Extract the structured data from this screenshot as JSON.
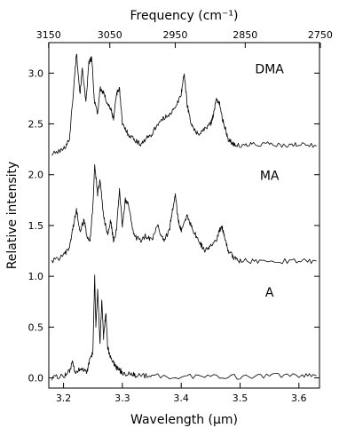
{
  "chart_data": {
    "type": "line",
    "xlabel": "Wavelength (μm)",
    "x2label": "Frequency (cm⁻¹)",
    "ylabel": "Relative intensity",
    "xlim": [
      3.175,
      3.635
    ],
    "ylim": [
      -0.1,
      3.3
    ],
    "x_ticks": [
      3.2,
      3.3,
      3.4,
      3.5,
      3.6
    ],
    "y_ticks": [
      0.0,
      0.5,
      1.0,
      1.5,
      2.0,
      2.5,
      3.0
    ],
    "x2_ticks": [
      3150,
      3050,
      2950,
      2850,
      2750
    ],
    "x_tick_labels": [
      "3.2",
      "3.3",
      "3.4",
      "3.5",
      "3.6"
    ],
    "y_tick_labels": [
      "0.0",
      "0.5",
      "1.0",
      "1.5",
      "2.0",
      "2.5",
      "3.0"
    ],
    "x2_tick_labels": [
      "3150",
      "3050",
      "2950",
      "2850",
      "2750"
    ],
    "line_color": "#000000",
    "series": [
      {
        "name": "DMA",
        "label_position": [
          3.55,
          3.0
        ],
        "x": [
          3.18,
          3.2,
          3.21,
          3.218,
          3.222,
          3.228,
          3.232,
          3.238,
          3.243,
          3.248,
          3.252,
          3.258,
          3.262,
          3.268,
          3.275,
          3.28,
          3.285,
          3.29,
          3.295,
          3.3,
          3.31,
          3.32,
          3.33,
          3.34,
          3.35,
          3.36,
          3.37,
          3.38,
          3.39,
          3.4,
          3.405,
          3.41,
          3.415,
          3.42,
          3.43,
          3.44,
          3.45,
          3.455,
          3.46,
          3.465,
          3.47,
          3.475,
          3.48,
          3.49,
          3.5,
          3.52,
          3.55,
          3.58,
          3.6,
          3.63
        ],
        "y": [
          2.2,
          2.25,
          2.35,
          2.9,
          3.2,
          2.8,
          3.05,
          2.7,
          3.1,
          3.15,
          2.75,
          2.6,
          2.85,
          2.8,
          2.7,
          2.65,
          2.55,
          2.8,
          2.85,
          2.5,
          2.4,
          2.35,
          2.3,
          2.35,
          2.4,
          2.5,
          2.55,
          2.6,
          2.65,
          2.8,
          3.0,
          2.7,
          2.55,
          2.45,
          2.4,
          2.45,
          2.5,
          2.6,
          2.75,
          2.7,
          2.55,
          2.45,
          2.35,
          2.3,
          2.28,
          2.3,
          2.3,
          2.28,
          2.3,
          2.28
        ]
      },
      {
        "name": "MA",
        "label_position": [
          3.55,
          1.95
        ],
        "x": [
          3.18,
          3.2,
          3.21,
          3.215,
          3.222,
          3.228,
          3.235,
          3.24,
          3.245,
          3.25,
          3.253,
          3.258,
          3.262,
          3.268,
          3.275,
          3.28,
          3.285,
          3.29,
          3.295,
          3.3,
          3.305,
          3.31,
          3.32,
          3.33,
          3.34,
          3.35,
          3.36,
          3.37,
          3.38,
          3.385,
          3.39,
          3.395,
          3.4,
          3.41,
          3.42,
          3.43,
          3.44,
          3.45,
          3.46,
          3.465,
          3.47,
          3.475,
          3.48,
          3.49,
          3.5,
          3.53,
          3.56,
          3.6,
          3.63
        ],
        "y": [
          1.15,
          1.2,
          1.28,
          1.45,
          1.65,
          1.45,
          1.55,
          1.4,
          1.35,
          1.7,
          2.1,
          1.8,
          1.95,
          1.6,
          1.4,
          1.55,
          1.35,
          1.45,
          1.85,
          1.5,
          1.75,
          1.7,
          1.4,
          1.35,
          1.4,
          1.35,
          1.5,
          1.35,
          1.45,
          1.65,
          1.8,
          1.55,
          1.45,
          1.6,
          1.45,
          1.35,
          1.25,
          1.3,
          1.35,
          1.45,
          1.48,
          1.35,
          1.25,
          1.18,
          1.15,
          1.15,
          1.15,
          1.15,
          1.15
        ]
      },
      {
        "name": "A",
        "label_position": [
          3.55,
          0.8
        ],
        "x": [
          3.18,
          3.2,
          3.21,
          3.215,
          3.22,
          3.23,
          3.24,
          3.245,
          3.25,
          3.253,
          3.255,
          3.258,
          3.262,
          3.265,
          3.268,
          3.272,
          3.275,
          3.28,
          3.285,
          3.29,
          3.295,
          3.3,
          3.31,
          3.32,
          3.33,
          3.35,
          3.4,
          3.45,
          3.5,
          3.55,
          3.6,
          3.63
        ],
        "y": [
          0.0,
          0.02,
          0.06,
          0.15,
          0.05,
          0.1,
          0.05,
          0.2,
          0.25,
          0.99,
          0.5,
          0.85,
          0.35,
          0.75,
          0.4,
          0.65,
          0.3,
          0.2,
          0.15,
          0.1,
          0.08,
          0.05,
          0.04,
          0.03,
          0.02,
          0.02,
          0.01,
          0.02,
          0.01,
          0.02,
          0.02,
          0.02
        ]
      }
    ]
  }
}
